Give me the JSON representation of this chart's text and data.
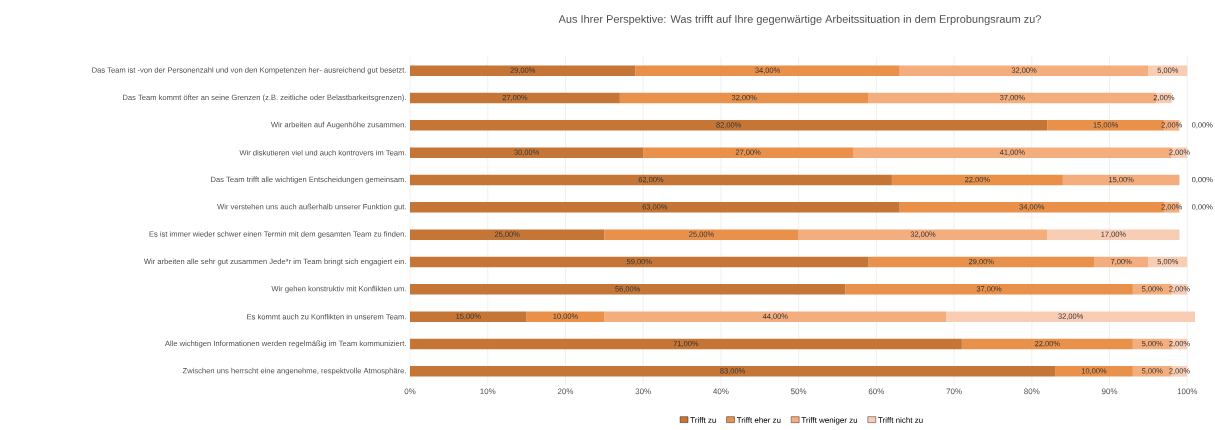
{
  "chart_data": {
    "type": "bar",
    "orientation": "horizontal",
    "stacked": true,
    "title": "Aus Ihrer Perspektive: Was trifft auf Ihre gegenwärtige Arbeitssituation in dem Erprobungsraum zu?",
    "categories": [
      "Das Team ist -von der Personenzahl und von den Kompetenzen her- ausreichend gut besetzt.",
      "Das Team kommt öfter an seine Grenzen (z.B. zeitliche oder Belastbarkeitsgrenzen).",
      "Wir arbeiten auf Augenhöhe zusammen.",
      "Wir diskutieren viel und auch kontrovers im Team.",
      "Das Team trifft alle wichtigen Entscheidungen gemeinsam.",
      "Wir verstehen uns auch außerhalb unserer Funktion gut.",
      "Es ist immer wieder schwer einen Termin mit dem gesamten Team zu finden.",
      "Wir arbeiten alle sehr gut zusammen Jede*r im Team bringt sich engagiert ein.",
      "Wir gehen konstruktiv mit Konflikten um.",
      "Es kommt auch zu Konflikten in unserem Team.",
      "Alle wichtigen Informationen werden regelmäßig im Team kommuniziert.",
      "Zwischen uns herrscht eine angenehme, respektvolle Atmosphäre."
    ],
    "series": [
      {
        "name": "Trifft zu",
        "color": "#c57637",
        "values": [
          29,
          27,
          82,
          30,
          62,
          63,
          25,
          59,
          56,
          15,
          71,
          83
        ],
        "value_labels": [
          "29,00%",
          "27,00%",
          "82,00%",
          "30,00%",
          "62,00%",
          "63,00%",
          "25,00%",
          "59,00%",
          "56,00%",
          "15,00%",
          "71,00%",
          "83,00%"
        ]
      },
      {
        "name": "Trifft eher zu",
        "color": "#e9914a",
        "values": [
          34,
          32,
          15,
          27,
          22,
          34,
          25,
          29,
          37,
          10,
          22,
          10
        ],
        "value_labels": [
          "34,00%",
          "32,00%",
          "15,00%",
          "27,00%",
          "22,00%",
          "34,00%",
          "25,00%",
          "29,00%",
          "37,00%",
          "10,00%",
          "22,00%",
          "10,00%"
        ]
      },
      {
        "name": "Trifft weniger zu",
        "color": "#f4ad7c",
        "values": [
          32,
          37,
          2,
          41,
          15,
          2,
          32,
          7,
          5,
          44,
          5,
          5
        ],
        "value_labels": [
          "32,00%",
          "37,00%",
          "2,00%",
          "41,00%",
          "15,00%",
          "2,00%",
          "32,00%",
          "7,00%",
          "5,00%",
          "44,00%",
          "5,00%",
          "5,00%"
        ]
      },
      {
        "name": "Trifft nicht zu",
        "color": "#f8cdb4",
        "values": [
          5,
          2,
          0,
          2,
          0,
          0,
          17,
          5,
          2,
          32,
          2,
          2
        ],
        "value_labels": [
          "5,00%",
          "2,00%",
          "0,00%",
          "2,00%",
          "0,00%",
          "0,00%",
          "17,00%",
          "5,00%",
          "2,00%",
          "32,00%",
          "2,00%",
          "2,00%"
        ]
      }
    ],
    "xlim": [
      0,
      101
    ],
    "xticks": [
      {
        "value": 0,
        "label": "0%"
      },
      {
        "value": 10,
        "label": "10%"
      },
      {
        "value": 20,
        "label": "20%"
      },
      {
        "value": 30,
        "label": "30%"
      },
      {
        "value": 40,
        "label": "40%"
      },
      {
        "value": 50,
        "label": "50%"
      },
      {
        "value": 60,
        "label": "60%"
      },
      {
        "value": 70,
        "label": "70%"
      },
      {
        "value": 80,
        "label": "80%"
      },
      {
        "value": 90,
        "label": "90%"
      },
      {
        "value": 100,
        "label": "100%"
      }
    ],
    "grid": "x",
    "legend": "bottom"
  }
}
